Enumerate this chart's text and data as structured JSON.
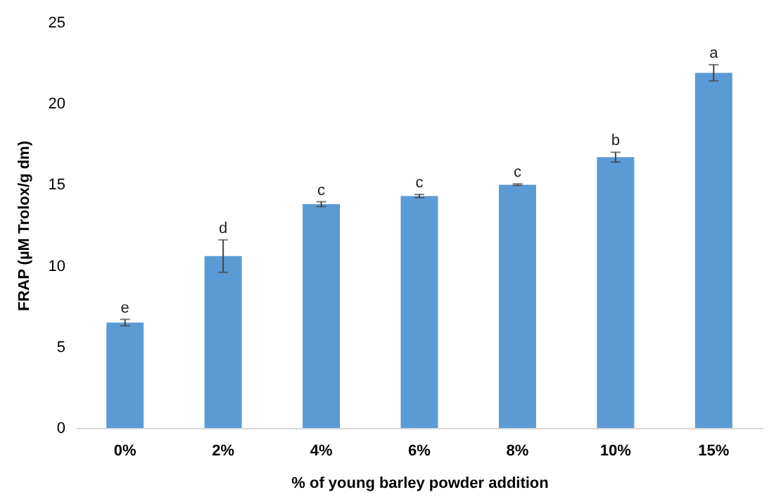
{
  "chart_data": {
    "type": "bar",
    "xlabel": "% of young barley powder addition",
    "ylabel": "FRAP (µM Trolox/g dm)",
    "categories": [
      "0%",
      "2%",
      "4%",
      "6%",
      "8%",
      "10%",
      "15%"
    ],
    "values": [
      6.5,
      10.6,
      13.8,
      14.3,
      15.0,
      16.7,
      21.9
    ],
    "errors": [
      0.2,
      1.0,
      0.15,
      0.1,
      0.05,
      0.3,
      0.5
    ],
    "color": "#5b9bd5",
    "ylim": [
      0,
      25
    ],
    "yticks": [
      0,
      5,
      10,
      15,
      20,
      25
    ],
    "grid": false,
    "annotations": [
      {
        "text": "e",
        "x": "0%",
        "y": 6.7
      },
      {
        "text": "d",
        "x": "2%",
        "y": 11.6
      },
      {
        "text": "c",
        "x": "4%",
        "y": 13.95
      },
      {
        "text": "c",
        "x": "6%",
        "y": 14.4
      },
      {
        "text": "c",
        "x": "8%",
        "y": 15.05
      },
      {
        "text": "b",
        "x": "10%",
        "y": 17.0
      },
      {
        "text": "a",
        "x": "15%",
        "y": 22.4
      }
    ]
  }
}
